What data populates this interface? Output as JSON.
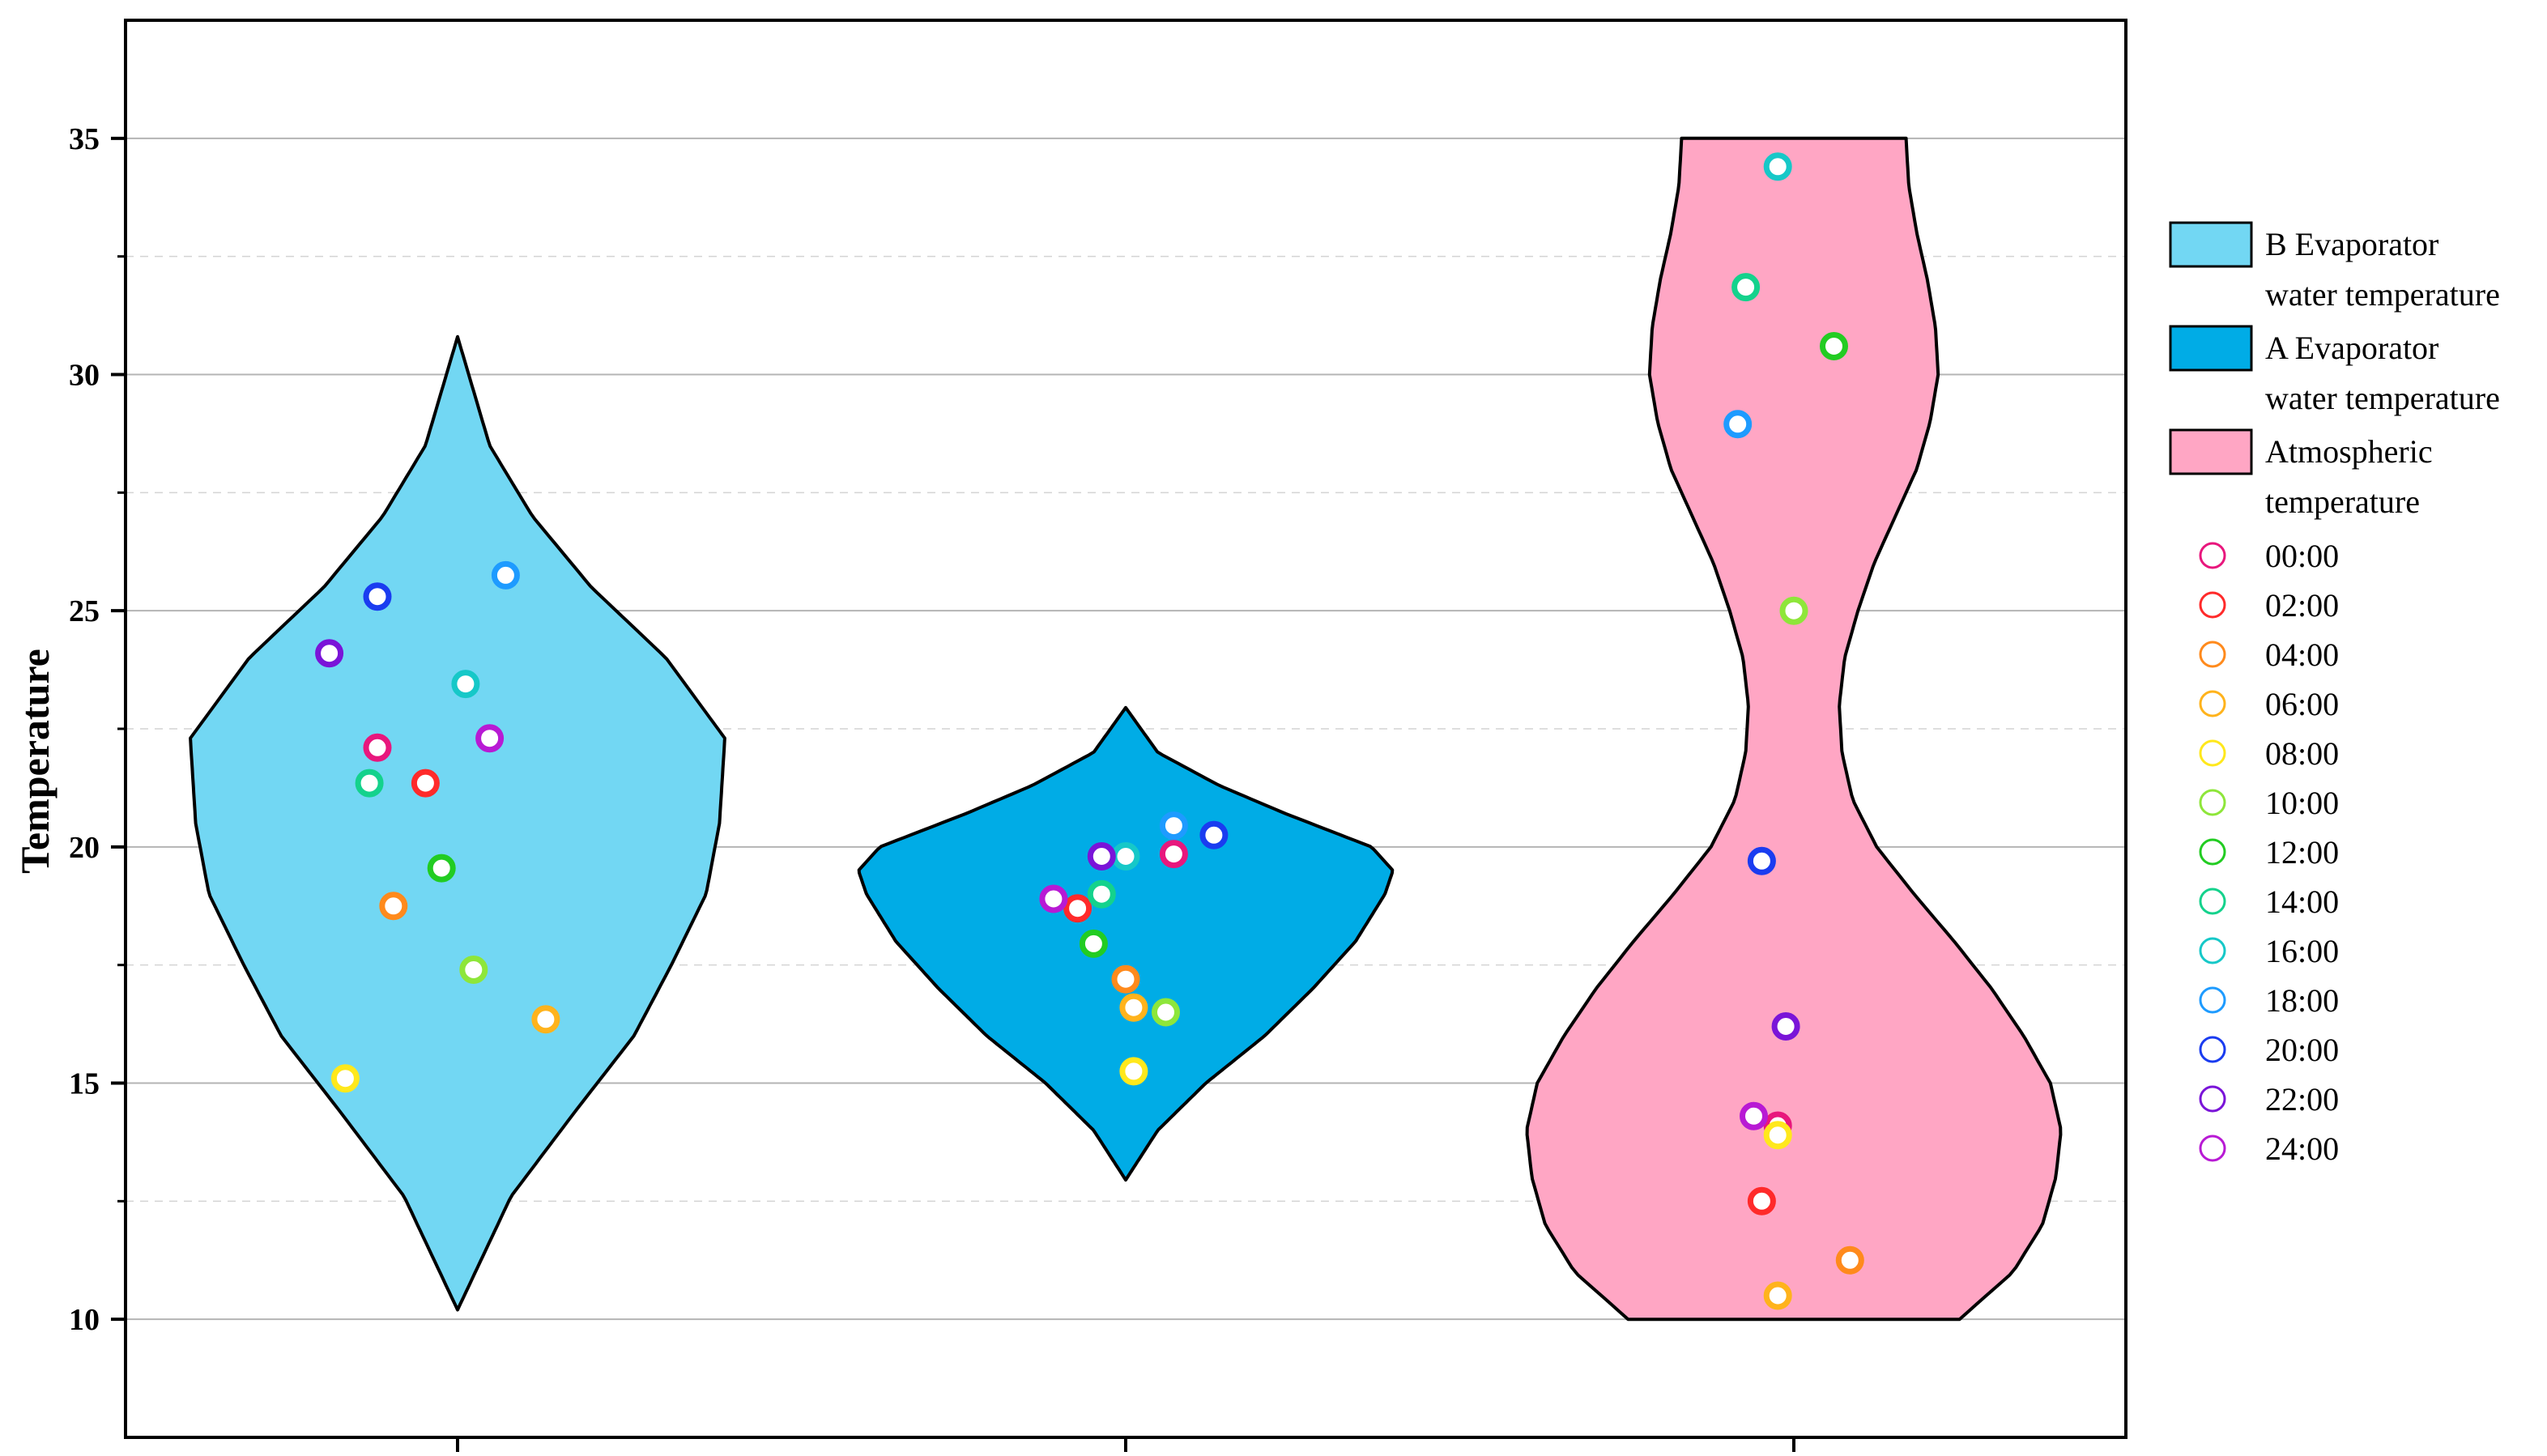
{
  "chart_data": {
    "type": "violin",
    "title": "",
    "xlabel": "",
    "ylabel": "Temperature",
    "ylim": [
      7.5,
      37.5
    ],
    "yticks": [
      10,
      15,
      20,
      25,
      30,
      35
    ],
    "grid": {
      "major": true,
      "minor": true
    },
    "legend_position": "right",
    "time_labels": [
      "00:00",
      "02:00",
      "04:00",
      "06:00",
      "08:00",
      "10:00",
      "12:00",
      "14:00",
      "16:00",
      "18:00",
      "20:00",
      "22:00",
      "24:00"
    ],
    "time_colors": [
      "#e8177d",
      "#ff2a2a",
      "#ff8a1c",
      "#ffb31c",
      "#ffe81c",
      "#8ee63a",
      "#22cc22",
      "#14d28c",
      "#16c8c8",
      "#1e9bff",
      "#1a3cf0",
      "#7a14d8",
      "#b81ad4"
    ],
    "series": [
      {
        "name_lines": [
          "B Evaporator",
          "water temperature"
        ],
        "fill": "#72d7f3",
        "y_min": 10.2,
        "y_max": 30.8,
        "profile": [
          [
            10.2,
            0
          ],
          [
            12.6,
            0.2
          ],
          [
            14.4,
            0.44
          ],
          [
            16,
            0.66
          ],
          [
            17.5,
            0.8
          ],
          [
            19,
            0.93
          ],
          [
            20.5,
            0.98
          ],
          [
            22.3,
            1.0
          ],
          [
            24,
            0.78
          ],
          [
            25.5,
            0.5
          ],
          [
            27,
            0.28
          ],
          [
            28.5,
            0.12
          ],
          [
            30.8,
            0
          ]
        ],
        "points": [
          {
            "time": "00:00",
            "y": 22.1,
            "dx": -0.1
          },
          {
            "time": "02:00",
            "y": 21.35,
            "dx": -0.04
          },
          {
            "time": "04:00",
            "y": 18.75,
            "dx": -0.08
          },
          {
            "time": "06:00",
            "y": 16.35,
            "dx": 0.11
          },
          {
            "time": "08:00",
            "y": 15.1,
            "dx": -0.14
          },
          {
            "time": "10:00",
            "y": 17.4,
            "dx": 0.02
          },
          {
            "time": "12:00",
            "y": 19.55,
            "dx": -0.02
          },
          {
            "time": "14:00",
            "y": 21.35,
            "dx": -0.11
          },
          {
            "time": "16:00",
            "y": 23.45,
            "dx": 0.01
          },
          {
            "time": "18:00",
            "y": 25.75,
            "dx": 0.06
          },
          {
            "time": "20:00",
            "y": 25.3,
            "dx": -0.1
          },
          {
            "time": "22:00",
            "y": 24.1,
            "dx": -0.16
          },
          {
            "time": "24:00",
            "y": 22.3,
            "dx": 0.04
          }
        ]
      },
      {
        "name_lines": [
          "A Evaporator",
          "water temperature"
        ],
        "fill": "#00ace6",
        "y_min": 12.95,
        "y_max": 22.95,
        "profile": [
          [
            12.95,
            0
          ],
          [
            14,
            0.12
          ],
          [
            15,
            0.3
          ],
          [
            16,
            0.52
          ],
          [
            17,
            0.7
          ],
          [
            18,
            0.86
          ],
          [
            19,
            0.97
          ],
          [
            19.5,
            1.0
          ],
          [
            20,
            0.92
          ],
          [
            20.7,
            0.6
          ],
          [
            21.3,
            0.35
          ],
          [
            22,
            0.12
          ],
          [
            22.95,
            0
          ]
        ],
        "points": [
          {
            "time": "00:00",
            "y": 19.85,
            "dx": 0.06
          },
          {
            "time": "02:00",
            "y": 18.7,
            "dx": -0.06
          },
          {
            "time": "04:00",
            "y": 17.2,
            "dx": 0.0
          },
          {
            "time": "06:00",
            "y": 16.6,
            "dx": 0.01
          },
          {
            "time": "08:00",
            "y": 15.25,
            "dx": 0.01
          },
          {
            "time": "10:00",
            "y": 16.5,
            "dx": 0.05
          },
          {
            "time": "12:00",
            "y": 17.95,
            "dx": -0.04
          },
          {
            "time": "14:00",
            "y": 19.0,
            "dx": -0.03
          },
          {
            "time": "16:00",
            "y": 19.8,
            "dx": 0.0
          },
          {
            "time": "18:00",
            "y": 20.45,
            "dx": 0.06
          },
          {
            "time": "20:00",
            "y": 20.25,
            "dx": 0.11
          },
          {
            "time": "22:00",
            "y": 19.8,
            "dx": -0.03
          },
          {
            "time": "24:00",
            "y": 18.9,
            "dx": -0.09
          }
        ]
      },
      {
        "name_lines": [
          "Atmospheric",
          "temperature"
        ],
        "fill": "#ffa6c4",
        "y_min": 10,
        "y_max": 35,
        "profile": [
          [
            10,
            0.62
          ],
          [
            11,
            0.82
          ],
          [
            12,
            0.93
          ],
          [
            13,
            0.98
          ],
          [
            14,
            1.0
          ],
          [
            15,
            0.96
          ],
          [
            16,
            0.86
          ],
          [
            17,
            0.74
          ],
          [
            18,
            0.6
          ],
          [
            19,
            0.45
          ],
          [
            20,
            0.31
          ],
          [
            21,
            0.22
          ],
          [
            22,
            0.18
          ],
          [
            23,
            0.17
          ],
          [
            24,
            0.19
          ],
          [
            25,
            0.24
          ],
          [
            26,
            0.3
          ],
          [
            27,
            0.38
          ],
          [
            28,
            0.46
          ],
          [
            29,
            0.51
          ],
          [
            30,
            0.54
          ],
          [
            31,
            0.53
          ],
          [
            32,
            0.5
          ],
          [
            33,
            0.46
          ],
          [
            34,
            0.43
          ],
          [
            35,
            0.42
          ]
        ],
        "points": [
          {
            "time": "00:00",
            "y": 14.1,
            "dx": -0.02
          },
          {
            "time": "02:00",
            "y": 12.5,
            "dx": -0.04
          },
          {
            "time": "04:00",
            "y": 11.25,
            "dx": 0.07
          },
          {
            "time": "06:00",
            "y": 10.5,
            "dx": -0.02
          },
          {
            "time": "08:00",
            "y": 13.9,
            "dx": -0.02
          },
          {
            "time": "10:00",
            "y": 25.0,
            "dx": 0.0
          },
          {
            "time": "12:00",
            "y": 30.6,
            "dx": 0.05
          },
          {
            "time": "14:00",
            "y": 31.85,
            "dx": -0.06
          },
          {
            "time": "16:00",
            "y": 34.4,
            "dx": -0.02
          },
          {
            "time": "18:00",
            "y": 28.95,
            "dx": -0.07
          },
          {
            "time": "20:00",
            "y": 19.7,
            "dx": -0.04
          },
          {
            "time": "22:00",
            "y": 16.2,
            "dx": -0.01
          },
          {
            "time": "24:00",
            "y": 14.3,
            "dx": -0.05
          }
        ]
      }
    ]
  }
}
